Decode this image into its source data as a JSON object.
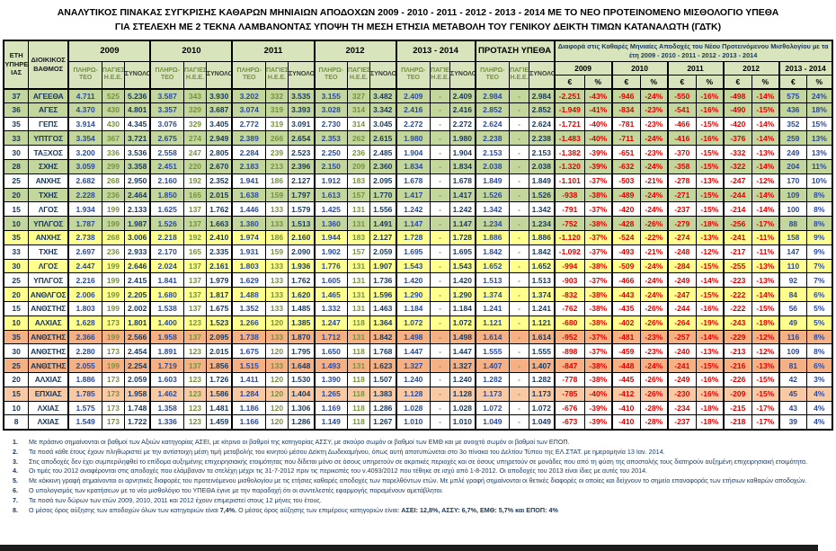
{
  "title": {
    "line1": "ΑΝΑΛΥΤΙΚΟΣ ΠΙΝΑΚΑΣ  ΣΥΓΚΡΙΣΗΣ ΚΑΘΑΡΩΝ ΜΗΝΙΑΙΩΝ ΑΠΟΔΟΧΩΝ 2009 - 2010 - 2011 - 2012 - 2013 - 2014 ΜΕ ΤΟ ΝΕΟ ΠΡΟΤΕΙΝΟΜΕΝΟ ΜΙΣΘΟΛΟΓΙΟ ΥΠΕΘΑ",
    "line2": "ΓΙΑ ΣΤΕΛΕΧΗ ΜΕ 2 ΤΕΚΝΑ ΛΑΜΒΑΝΟΝΤΑΣ ΥΠΟΨΗ ΤΗ ΜΕΣΗ ΕΤΗΣΙΑ ΜΕΤΑΒΟΛΗ ΤΟΥ ΓΕΝΙΚΟΥ ΔΕΙΚΤΗ ΤΙΜΩΝ ΚΑΤΑΝΑΛΩΤΗ (ΓΔΤΚ)"
  },
  "colors": {
    "header_bg": "#D7E4BC",
    "asei_green": "#C3D69B",
    "assy_yellow": "#FFFF8D",
    "emth_salmon": "#F5B183",
    "epop_salmon": "#F8C9A2",
    "negative_red": "#E00000",
    "value_blue": "#2B4A9E",
    "navy": "#17375D",
    "olive": "#76923C"
  },
  "table": {
    "header": {
      "col_eti": "ΕΤΗ\nΥΠΗΡΕΣ\nΙΑΣ",
      "col_vathmos": "ΔΙΟΙΚΙΚΟΣ ΒΑΘΜΟΣ",
      "years": [
        "2009",
        "2010",
        "2011",
        "2012",
        "2013 - 2014",
        "ΠΡΟΤΑΣΗ ΥΠΕΘΑ"
      ],
      "sub_payable": "ΠΛΗΡΩ-ΤΕΟ",
      "sub_fixed": "ΠΑΓΙΕΣ Η.Ε.Ε.",
      "sub_total": "ΣΥΝΟΛΟ",
      "diff_title": "Διαφορά στις Καθαρές Μηνιαίες Αποδοχές του Νέου Προτεινόμενου Μισθολογίου με τα έτη 2009 - 2010 - 2011 - 2012 - 2013 - 2014",
      "diff_years": [
        "2009",
        "2010",
        "2011",
        "2012",
        "2013 - 2014"
      ],
      "euro_symbol": "€",
      "percent_symbol": "%"
    },
    "rows": [
      {
        "color": "green",
        "cells": [
          "37",
          "ΑΓΕΕΘΑ",
          "4.711",
          "525",
          "5.236",
          "3.587",
          "343",
          "3.930",
          "3.202",
          "332",
          "3.535",
          "3.155",
          "327",
          "3.482",
          "2.409",
          "-",
          "2.409",
          "2.984",
          "-",
          "2.984",
          "-2.251",
          "-43%",
          "-946",
          "-24%",
          "-550",
          "-16%",
          "-498",
          "-14%",
          "575",
          "24%"
        ]
      },
      {
        "color": "green",
        "cells": [
          "36",
          "ΑΓΕΣ",
          "4.370",
          "430",
          "4.801",
          "3.357",
          "329",
          "3.687",
          "3.074",
          "319",
          "3.393",
          "3.028",
          "314",
          "3.342",
          "2.416",
          "-",
          "2.416",
          "2.852",
          "-",
          "2.852",
          "-1.949",
          "-41%",
          "-834",
          "-23%",
          "-541",
          "-16%",
          "-490",
          "-15%",
          "436",
          "18%"
        ]
      },
      {
        "color": "white",
        "cells": [
          "35",
          "ΓΕΠΣ",
          "3.914",
          "430",
          "4.345",
          "3.076",
          "329",
          "3.405",
          "2.772",
          "319",
          "3.091",
          "2.730",
          "314",
          "3.045",
          "2.272",
          "-",
          "2.272",
          "2.624",
          "-",
          "2.624",
          "-1.721",
          "-40%",
          "-781",
          "-23%",
          "-466",
          "-15%",
          "-420",
          "-14%",
          "352",
          "15%"
        ]
      },
      {
        "color": "green",
        "cells": [
          "33",
          "ΥΠΤΓΟΣ",
          "3.354",
          "367",
          "3.721",
          "2.675",
          "274",
          "2.949",
          "2.389",
          "266",
          "2.654",
          "2.353",
          "262",
          "2.615",
          "1.980",
          "-",
          "1.980",
          "2.238",
          "-",
          "2.238",
          "-1.483",
          "-40%",
          "-711",
          "-24%",
          "-416",
          "-16%",
          "-376",
          "-14%",
          "259",
          "13%"
        ]
      },
      {
        "color": "white",
        "cells": [
          "30",
          "ΤΑΞΧΟΣ",
          "3.200",
          "336",
          "3.536",
          "2.558",
          "247",
          "2.805",
          "2.284",
          "239",
          "2.523",
          "2.250",
          "236",
          "2.485",
          "1.904",
          "-",
          "1.904",
          "2.153",
          "-",
          "2.153",
          "-1.382",
          "-39%",
          "-651",
          "-23%",
          "-370",
          "-15%",
          "-332",
          "-13%",
          "249",
          "13%"
        ]
      },
      {
        "color": "green",
        "cells": [
          "28",
          "ΣΧΗΣ",
          "3.059",
          "299",
          "3.358",
          "2.451",
          "220",
          "2.670",
          "2.183",
          "213",
          "2.396",
          "2.150",
          "209",
          "2.360",
          "1.834",
          "-",
          "1.834",
          "2.038",
          "-",
          "2.038",
          "-1.320",
          "-39%",
          "-632",
          "-24%",
          "-358",
          "-15%",
          "-322",
          "-14%",
          "204",
          "11%"
        ]
      },
      {
        "color": "white",
        "cells": [
          "25",
          "ΑΝΧΗΣ",
          "2.682",
          "268",
          "2.950",
          "2.160",
          "192",
          "2.352",
          "1.941",
          "186",
          "2.127",
          "1.912",
          "183",
          "2.095",
          "1.678",
          "-",
          "1.678",
          "1.849",
          "-",
          "1.849",
          "-1.101",
          "-37%",
          "-503",
          "-21%",
          "-278",
          "-13%",
          "-247",
          "-12%",
          "170",
          "10%"
        ]
      },
      {
        "color": "green",
        "cells": [
          "20",
          "ΤΧΗΣ",
          "2.228",
          "236",
          "2.464",
          "1.850",
          "165",
          "2.015",
          "1.638",
          "159",
          "1.797",
          "1.613",
          "157",
          "1.770",
          "1.417",
          "-",
          "1.417",
          "1.526",
          "-",
          "1.526",
          "-938",
          "-38%",
          "-489",
          "-24%",
          "-271",
          "-15%",
          "-244",
          "-14%",
          "109",
          "8%"
        ]
      },
      {
        "color": "white",
        "cells": [
          "15",
          "ΛΓΟΣ",
          "1.934",
          "199",
          "2.133",
          "1.625",
          "137",
          "1.762",
          "1.446",
          "133",
          "1.579",
          "1.425",
          "131",
          "1.556",
          "1.242",
          "-",
          "1.242",
          "1.342",
          "-",
          "1.342",
          "-791",
          "-37%",
          "-420",
          "-24%",
          "-237",
          "-15%",
          "-214",
          "-14%",
          "100",
          "8%"
        ]
      },
      {
        "color": "green",
        "cells": [
          "10",
          "ΥΠΛΓΟΣ",
          "1.787",
          "199",
          "1.987",
          "1.526",
          "137",
          "1.663",
          "1.380",
          "133",
          "1.513",
          "1.360",
          "131",
          "1.491",
          "1.147",
          "-",
          "1.147",
          "1.234",
          "-",
          "1.234",
          "-752",
          "-38%",
          "-428",
          "-26%",
          "-279",
          "-18%",
          "-256",
          "-17%",
          "88",
          "8%"
        ]
      },
      {
        "color": "yellow",
        "cells": [
          "35",
          "ΑΝΧΗΣ",
          "2.738",
          "268",
          "3.006",
          "2.218",
          "192",
          "2.410",
          "1.974",
          "186",
          "2.160",
          "1.944",
          "183",
          "2.127",
          "1.728",
          "-",
          "1.728",
          "1.886",
          "-",
          "1.886",
          "-1.120",
          "-37%",
          "-524",
          "-22%",
          "-274",
          "-13%",
          "-241",
          "-11%",
          "158",
          "9%"
        ]
      },
      {
        "color": "white",
        "cells": [
          "33",
          "ΤΧΗΣ",
          "2.697",
          "236",
          "2.933",
          "2.170",
          "165",
          "2.335",
          "1.931",
          "159",
          "2.090",
          "1.902",
          "157",
          "2.059",
          "1.695",
          "-",
          "1.695",
          "1.842",
          "-",
          "1.842",
          "-1.092",
          "-37%",
          "-493",
          "-21%",
          "-248",
          "-12%",
          "-217",
          "-11%",
          "147",
          "9%"
        ]
      },
      {
        "color": "yellow",
        "cells": [
          "30",
          "ΛΓΟΣ",
          "2.447",
          "199",
          "2.646",
          "2.024",
          "137",
          "2.161",
          "1.803",
          "133",
          "1.936",
          "1.776",
          "131",
          "1.907",
          "1.543",
          "-",
          "1.543",
          "1.652",
          "-",
          "1.652",
          "-994",
          "-38%",
          "-509",
          "-24%",
          "-284",
          "-15%",
          "-255",
          "-13%",
          "110",
          "7%"
        ]
      },
      {
        "color": "white",
        "cells": [
          "25",
          "ΥΠΛΓΟΣ",
          "2.216",
          "199",
          "2.415",
          "1.841",
          "137",
          "1.979",
          "1.629",
          "133",
          "1.762",
          "1.605",
          "131",
          "1.736",
          "1.420",
          "-",
          "1.420",
          "1.513",
          "-",
          "1.513",
          "-903",
          "-37%",
          "-466",
          "-24%",
          "-249",
          "-14%",
          "-223",
          "-13%",
          "92",
          "7%"
        ]
      },
      {
        "color": "yellow",
        "cells": [
          "20",
          "ΑΝΘΛΓΟΣ",
          "2.006",
          "199",
          "2.205",
          "1.680",
          "137",
          "1.817",
          "1.488",
          "133",
          "1.620",
          "1.465",
          "131",
          "1.596",
          "1.290",
          "-",
          "1.290",
          "1.374",
          "-",
          "1.374",
          "-832",
          "-38%",
          "-443",
          "-24%",
          "-247",
          "-15%",
          "-222",
          "-14%",
          "84",
          "6%"
        ]
      },
      {
        "color": "white",
        "cells": [
          "15",
          "ΑΝΘΣΤΗΣ",
          "1.803",
          "199",
          "2.002",
          "1.538",
          "137",
          "1.675",
          "1.352",
          "133",
          "1.485",
          "1.332",
          "131",
          "1.463",
          "1.184",
          "-",
          "1.184",
          "1.241",
          "-",
          "1.241",
          "-762",
          "-38%",
          "-435",
          "-26%",
          "-244",
          "-16%",
          "-222",
          "-15%",
          "56",
          "5%"
        ]
      },
      {
        "color": "yellow",
        "cells": [
          "10",
          "ΑΛΧΙΑΣ",
          "1.628",
          "173",
          "1.801",
          "1.400",
          "123",
          "1.523",
          "1.266",
          "120",
          "1.385",
          "1.247",
          "118",
          "1.364",
          "1.072",
          "-",
          "1.072",
          "1.121",
          "-",
          "1.121",
          "-680",
          "-38%",
          "-402",
          "-26%",
          "-264",
          "-19%",
          "-243",
          "-18%",
          "49",
          "5%"
        ]
      },
      {
        "color": "emth",
        "cells": [
          "35",
          "ΑΝΘΣΤΗΣ",
          "2.366",
          "199",
          "2.566",
          "1.958",
          "137",
          "2.095",
          "1.738",
          "133",
          "1.870",
          "1.712",
          "131",
          "1.842",
          "1.498",
          "-",
          "1.498",
          "1.614",
          "-",
          "1.614",
          "-952",
          "-37%",
          "-481",
          "-23%",
          "-257",
          "-14%",
          "-229",
          "-12%",
          "116",
          "8%"
        ]
      },
      {
        "color": "white",
        "cells": [
          "30",
          "ΑΝΘΣΤΗΣ",
          "2.280",
          "173",
          "2.454",
          "1.891",
          "123",
          "2.015",
          "1.675",
          "120",
          "1.795",
          "1.650",
          "118",
          "1.768",
          "1.447",
          "-",
          "1.447",
          "1.555",
          "-",
          "1.555",
          "-898",
          "-37%",
          "-459",
          "-23%",
          "-240",
          "-13%",
          "-213",
          "-12%",
          "109",
          "8%"
        ]
      },
      {
        "color": "emth",
        "cells": [
          "25",
          "ΑΝΘΣΤΗΣ",
          "2.055",
          "199",
          "2.254",
          "1.719",
          "137",
          "1.856",
          "1.515",
          "133",
          "1.648",
          "1.493",
          "131",
          "1.623",
          "1.327",
          "-",
          "1.327",
          "1.407",
          "-",
          "1.407",
          "-847",
          "-38%",
          "-448",
          "-24%",
          "-241",
          "-15%",
          "-216",
          "-13%",
          "81",
          "6%"
        ]
      },
      {
        "color": "white",
        "cells": [
          "20",
          "ΑΛΧΙΑΣ",
          "1.886",
          "173",
          "2.059",
          "1.603",
          "123",
          "1.726",
          "1.411",
          "120",
          "1.530",
          "1.390",
          "118",
          "1.507",
          "1.240",
          "-",
          "1.240",
          "1.282",
          "-",
          "1.282",
          "-778",
          "-38%",
          "-445",
          "-26%",
          "-249",
          "-16%",
          "-226",
          "-15%",
          "42",
          "3%"
        ]
      },
      {
        "color": "epop",
        "cells": [
          "15",
          "ΕΠΧΙΑΣ",
          "1.785",
          "173",
          "1.958",
          "1.462",
          "123",
          "1.586",
          "1.284",
          "120",
          "1.404",
          "1.265",
          "118",
          "1.383",
          "1.128",
          "-",
          "1.128",
          "1.173",
          "-",
          "1.173",
          "-785",
          "-40%",
          "-412",
          "-26%",
          "-230",
          "-16%",
          "-209",
          "-15%",
          "45",
          "4%"
        ]
      },
      {
        "color": "white",
        "cells": [
          "10",
          "ΛΧΙΑΣ",
          "1.575",
          "173",
          "1.748",
          "1.358",
          "123",
          "1.481",
          "1.186",
          "120",
          "1.306",
          "1.169",
          "118",
          "1.286",
          "1.028",
          "-",
          "1.028",
          "1.072",
          "-",
          "1.072",
          "-676",
          "-39%",
          "-410",
          "-28%",
          "-234",
          "-18%",
          "-215",
          "-17%",
          "43",
          "4%"
        ]
      },
      {
        "color": "white",
        "cells": [
          "8",
          "ΛΧΙΑΣ",
          "1.549",
          "173",
          "1.722",
          "1.336",
          "123",
          "1.459",
          "1.166",
          "120",
          "1.286",
          "1.149",
          "118",
          "1.267",
          "1.010",
          "-",
          "1.010",
          "1.049",
          "-",
          "1.049",
          "-673",
          "-39%",
          "-410",
          "-28%",
          "-237",
          "-18%",
          "-218",
          "-17%",
          "39",
          "4%"
        ]
      }
    ]
  },
  "footnotes": [
    {
      "num": "1.",
      "segments": [
        {
          "t": "Με πράσινο σημαίνονται οι βαθμοί των Αξκών κατηγορίας ΑΣΕΙ, με κίτρινο οι βαθμοί της κατηγορίας ΑΣΣΥ, με σκούρο σωμόν οι βαθμοί των ΕΜΘ και με ανοιχτό σωμόν οι βαθμοί των ΕΠΟΠ.",
          "b": false
        }
      ]
    },
    {
      "num": "2.",
      "segments": [
        {
          "t": "Τα ποσά κάθε έτους έχουν πληθωριστεί με την αντίστοιχη μέση τιμή μεταβολής του κινητού μέσου Δείκτη Δωδεκαμήνου, όπως αυτή αποτυπώνεται στο 3ο πίνακα του Δελτίου Τύπου της ΕΛ.ΣΤΑΤ. με ημερομηνία 13 Ιαν. 2014.",
          "b": false
        }
      ]
    },
    {
      "num": "3.",
      "segments": [
        {
          "t": "Στις αποδοχές δεν έχει συμπεριληφθεί το επίδομα αυξημένης επιχειρησιακής ετοιμότητας που δίδεται μόνο σε όσους υπηρετούν σε ακριτικές περιοχές και σε όσους υπηρετούν σε μονάδες που από τη φύση της αποστολής τους διατηρούν αυξημένη επιχειρησιακή ετοιμότητα.",
          "b": false
        }
      ]
    },
    {
      "num": "4.",
      "segments": [
        {
          "t": "Οι τιμές του 2012 αναφέρονται στις αποδοχές που ελάμβαναν τα στελέχη μέχρι τις 31-7-2012 πριν τις περικοπές του ν.4093/2012 που τέθηκε σε ισχύ από 1-8-2012. Οι αποδοχές του 2013 είναι ίδιες με αυτές του 2014.",
          "b": false
        }
      ]
    },
    {
      "num": "5.",
      "segments": [
        {
          "t": "Με κόκκινη γραφή σημαίνονται οι αρνητικές διαφορές του προτεινόμενου μισθολογίου με τις ετήσιες καθαρές αποδοχές των παρελθόντων ετών. Με μπλέ γραφή σημαίνονται οι θετικές διαφορές οι οποίες και δείχνουν το σημείο επαναφοράς των ετήσιων καθαρών αποδοχών.",
          "b": false
        }
      ]
    },
    {
      "num": "6.",
      "segments": [
        {
          "t": "Ο υπολογισμός των κρατήσεων με το νέο μισθολόγιο του ΥΠΕΘΑ  έγινε με την παραδοχή ότι οι συντελεστές εφαρμογής παραμένουν αμετάβλητοι.",
          "b": false
        }
      ]
    },
    {
      "num": "7.",
      "segments": [
        {
          "t": "Τα ποσά των δώρων των ετών 2009, 2010, 2011 και 2012 έχουν επιμεριστεί στους 12 μήνες του έτους.",
          "b": false
        }
      ]
    },
    {
      "num": "8.",
      "segments": [
        {
          "t": "Ο μέσος όρος αύξησης των αποδοχών όλων των κατηγοριών είναι ",
          "b": false
        },
        {
          "t": "7,4%.",
          "b": true
        },
        {
          "t": " Ο μέσος όρος αύξησης των επιμέρους κατηγοριών είναι: ",
          "b": false
        },
        {
          "t": "ΑΣΕΙ: 12,8%, ΑΣΣΥ: 6,7%, ΕΜΘ: 5,7% και ΕΠΟΠ: 4%",
          "b": true
        }
      ]
    }
  ]
}
